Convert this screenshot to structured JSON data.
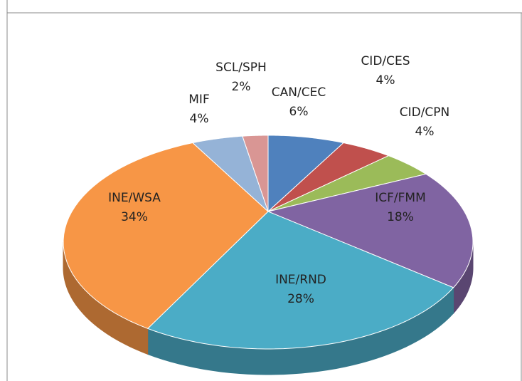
{
  "chart_data": {
    "type": "pie3d",
    "categories": [
      "CAN/CEC",
      "CID/CES",
      "CID/CPN",
      "ICF/FMM",
      "INE/RND",
      "INE/WSA",
      "MIF",
      "SCL/SPH"
    ],
    "values": [
      6,
      4,
      4,
      18,
      28,
      34,
      4,
      2
    ],
    "value_labels": [
      "6%",
      "4%",
      "4%",
      "18%",
      "28%",
      "34%",
      "4%",
      "2%"
    ],
    "colors": [
      "#4f81bd",
      "#c0504d",
      "#9bbb59",
      "#8064a2",
      "#4bacc6",
      "#f79646",
      "#95b3d7",
      "#d99694"
    ]
  }
}
